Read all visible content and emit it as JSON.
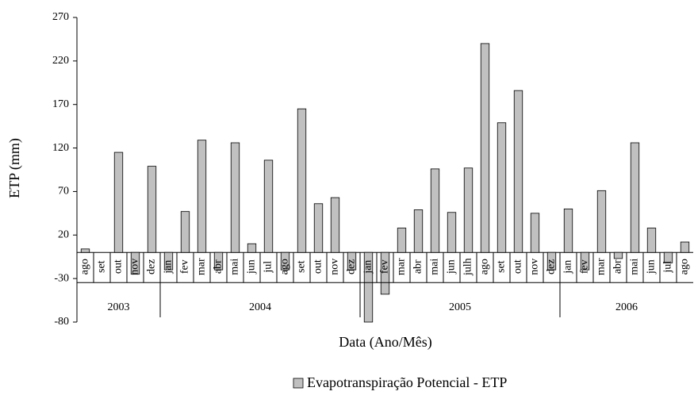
{
  "chart_data": {
    "type": "bar",
    "ylabel": "ETP (mm)",
    "xlabel": "Data (Ano/Mês)",
    "groups": [
      {
        "label": "2003",
        "categories": [
          "ago",
          "set",
          "out",
          "nov",
          "dez"
        ]
      },
      {
        "label": "2004",
        "categories": [
          "jan",
          "fev",
          "mar",
          "abr",
          "mai",
          "jun",
          "jul",
          "ago",
          "set",
          "out",
          "nov",
          "dez"
        ]
      },
      {
        "label": "2005",
        "categories": [
          "jan",
          "fev",
          "mar",
          "abr",
          "mai",
          "jun",
          "julh",
          "ago",
          "set",
          "out",
          "nov",
          "dez"
        ]
      },
      {
        "label": "2006",
        "categories": [
          "jan",
          "fev",
          "mar",
          "abr",
          "mai",
          "jun",
          "jul",
          "ago"
        ]
      }
    ],
    "series": [
      {
        "name": "Evapotranspiração Potencial - ETP",
        "color": "#c0c0c0",
        "values": [
          4,
          0,
          115,
          -25,
          99,
          -20,
          47,
          129,
          -20,
          126,
          10,
          106,
          -20,
          165,
          56,
          63,
          -20,
          -80,
          -48,
          28,
          49,
          96,
          46,
          97,
          240,
          149,
          186,
          45,
          -20,
          50,
          -20,
          71,
          -7,
          126,
          28,
          -12,
          12
        ]
      }
    ],
    "ylim": [
      -80,
      270
    ],
    "yticks": [
      -80,
      -30,
      20,
      70,
      120,
      170,
      220,
      270
    ]
  }
}
